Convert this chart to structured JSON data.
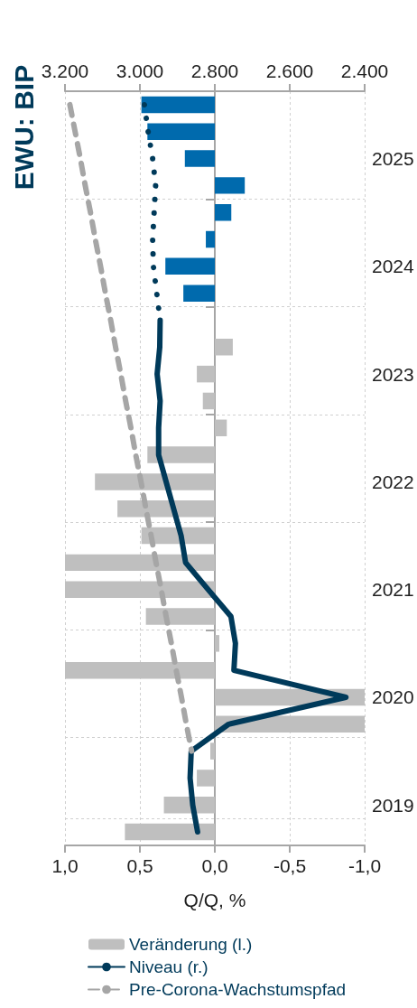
{
  "chart_data": {
    "type": "bar",
    "orientation": "horizontal",
    "title": "EWU: BIP",
    "xlabel": "Q/Q, %",
    "categories": [
      null,
      null,
      "2025",
      null,
      null,
      null,
      "2024",
      null,
      null,
      null,
      "2023",
      null,
      null,
      null,
      "2022",
      null,
      null,
      null,
      "2021",
      null,
      null,
      null,
      "2020",
      null,
      null,
      null,
      "2019",
      null
    ],
    "series": [
      {
        "name": "Veränderung (l.)",
        "color": "#bfbfbf",
        "colors": [
          "#006aad",
          "#006aad",
          "#006aad",
          "#006aad",
          "#006aad",
          "#006aad",
          "#006aad",
          "#006aad",
          "#bfbfbf",
          "#bfbfbf",
          "#bfbfbf",
          "#bfbfbf",
          "#bfbfbf",
          "#bfbfbf",
          "#bfbfbf",
          "#bfbfbf",
          "#bfbfbf",
          "#bfbfbf",
          "#bfbfbf",
          "#bfbfbf",
          "#bfbfbf",
          "#bfbfbf",
          "#bfbfbf",
          "#bfbfbf",
          "#bfbfbf",
          "#bfbfbf",
          "#bfbfbf",
          "#bfbfbf"
        ],
        "values": [
          0.49,
          0.45,
          0.2,
          -0.2,
          -0.11,
          0.06,
          0.33,
          0.21,
          0,
          -0.12,
          0.12,
          0.08,
          -0.08,
          0.45,
          0.8,
          0.65,
          0.49,
          1.0,
          1.0,
          0.46,
          -0.03,
          1.0,
          -1.0,
          -1.0,
          0.03,
          0.12,
          0.34,
          0.6
        ]
      },
      {
        "name": "Niveau (r.)",
        "type": "line",
        "axis": "x2",
        "color": "#003a5a",
        "line_style": "solid",
        "values": [
          null,
          null,
          null,
          null,
          null,
          null,
          null,
          null,
          2946,
          2947,
          2954,
          2946,
          2950,
          2950,
          2930,
          2910,
          2890,
          2878,
          2818,
          2757,
          2745,
          2749,
          2450,
          2763,
          2863,
          2866,
          2859,
          2846
        ]
      },
      {
        "type": "line",
        "axis": "x2",
        "color": "#003a5a",
        "line_style": "dotted",
        "values": [
          2988,
          2978,
          2966,
          2958,
          2962,
          2966,
          2964,
          2955,
          2946,
          null,
          null,
          null,
          null,
          null,
          null,
          null,
          null,
          null,
          null,
          null,
          null,
          null,
          null,
          null,
          null,
          null,
          null,
          null
        ]
      },
      {
        "name": "Pre-Corona-Wachstumspfad",
        "type": "line",
        "axis": "x2",
        "color": "#a6a6a6",
        "line_style": "dashed",
        "values": [
          3187,
          3173,
          3159,
          3146,
          3132,
          3119,
          3105,
          3092,
          3078,
          3065,
          3051,
          3038,
          3024,
          3011,
          2997,
          2984,
          2970,
          2957,
          2943,
          2930,
          2916,
          2903,
          2889,
          2876,
          2862,
          null,
          null,
          null
        ]
      }
    ],
    "xlim": [
      1.0,
      -1.0
    ],
    "xticks": [
      {
        "value": 1,
        "label": "1,0"
      },
      {
        "value": 0.5,
        "label": "0,5"
      },
      {
        "value": 0,
        "label": "0,0"
      },
      {
        "value": -0.5,
        "label": "-0,5"
      },
      {
        "value": -1,
        "label": "-1,0"
      }
    ],
    "x2lim": [
      3200,
      2400
    ],
    "x2ticks": [
      {
        "value": 3200,
        "label": "3.200"
      },
      {
        "value": 3000,
        "label": "3.000"
      },
      {
        "value": 2800,
        "label": "2.800"
      },
      {
        "value": 2600,
        "label": "2.600"
      },
      {
        "value": 2400,
        "label": "2.400"
      }
    ],
    "grid": true,
    "legend": "bottom"
  }
}
